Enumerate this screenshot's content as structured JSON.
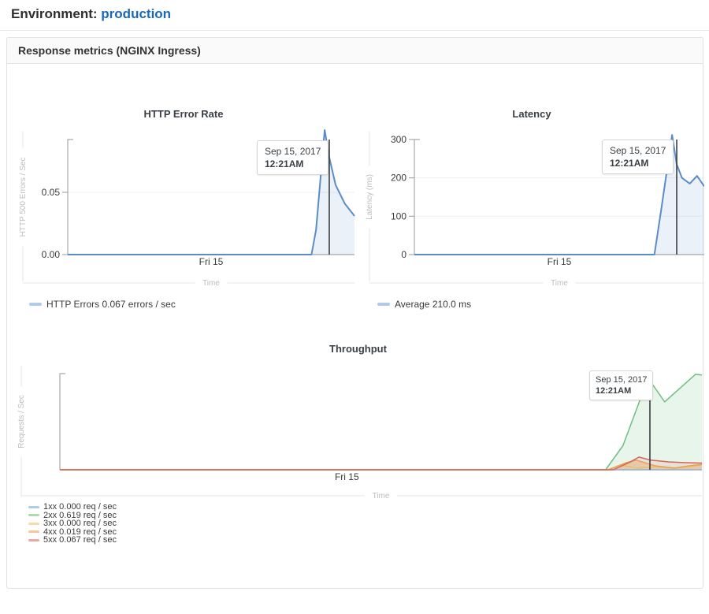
{
  "page": {
    "env_label": "Environment:",
    "env_value": "production"
  },
  "panel": {
    "title": "Response metrics (NGINX Ingress)"
  },
  "chart_data": [
    {
      "type": "area",
      "title": "HTTP Error Rate",
      "ylabel": "HTTP 500 Errors / Sec",
      "xlabel": "Time",
      "x_tick_label": "Fri 15",
      "ylim": [
        0,
        0.0924
      ],
      "yticks": [
        {
          "v": 0,
          "label": "0.00"
        },
        {
          "v": 0.05,
          "label": "0.05"
        }
      ],
      "grid": "horizontal",
      "legend_position": "bottom-left",
      "cursor": {
        "x": 0.912,
        "date": "Sep 15, 2017",
        "time": "12:21AM"
      },
      "series": [
        {
          "name": "HTTP Errors",
          "color": "#5c8cc7",
          "fill": "rgba(92,140,199,0.12)",
          "points": [
            [
              0,
              0
            ],
            [
              0.85,
              0
            ],
            [
              0.866,
              0.02
            ],
            [
              0.896,
              0.1
            ],
            [
              0.912,
              0.078
            ],
            [
              0.934,
              0.056
            ],
            [
              0.966,
              0.041
            ],
            [
              1,
              0.031
            ]
          ]
        }
      ],
      "legend": [
        {
          "label": "HTTP Errors 0.067 errors / sec",
          "color": "#8fb3de"
        }
      ]
    },
    {
      "type": "area",
      "title": "Latency",
      "ylabel": "Latency (ms)",
      "xlabel": "Time",
      "x_tick_label": "Fri 15",
      "ylim": [
        0,
        300
      ],
      "yticks": [
        {
          "v": 0,
          "label": "0"
        },
        {
          "v": 100,
          "label": "100"
        },
        {
          "v": 200,
          "label": "200"
        },
        {
          "v": 300,
          "label": "300"
        }
      ],
      "grid": "horizontal",
      "legend_position": "bottom-left",
      "cursor": {
        "x": 0.905,
        "date": "Sep 15, 2017",
        "time": "12:21AM"
      },
      "series": [
        {
          "name": "Average",
          "color": "#5c8cc7",
          "fill": "rgba(92,140,199,0.12)",
          "points": [
            [
              0,
              0
            ],
            [
              0.828,
              0
            ],
            [
              0.852,
              120
            ],
            [
              0.889,
              312
            ],
            [
              0.905,
              235
            ],
            [
              0.923,
              200
            ],
            [
              0.95,
              185
            ],
            [
              0.975,
              205
            ],
            [
              1,
              178
            ]
          ]
        }
      ],
      "legend": [
        {
          "label": "Average 210.0 ms",
          "color": "#8fb3de"
        }
      ]
    },
    {
      "type": "area",
      "title": "Throughput",
      "ylabel": "Requests / Sec",
      "xlabel": "Time",
      "x_tick_label": "Fri 15",
      "ylim": [
        0,
        0.68
      ],
      "yticks": [],
      "grid": "none",
      "legend_position": "bottom-left",
      "cursor": {
        "x": 0.919,
        "date": "Sep 15, 2017",
        "time": "12:21AM"
      },
      "series": [
        {
          "name": "1xx",
          "color": "#8fb3de",
          "fill": null,
          "points": [
            [
              0,
              0
            ],
            [
              1,
              0
            ]
          ]
        },
        {
          "name": "2xx",
          "color": "#6fbe80",
          "fill": "rgba(111,190,128,0.16)",
          "points": [
            [
              0,
              0
            ],
            [
              0.85,
              0
            ],
            [
              0.877,
              0.17
            ],
            [
              0.9,
              0.45
            ],
            [
              0.916,
              0.65
            ],
            [
              0.942,
              0.48
            ],
            [
              0.99,
              0.675
            ],
            [
              1,
              0.67
            ]
          ]
        },
        {
          "name": "3xx",
          "color": "#edc065",
          "fill": null,
          "points": [
            [
              0,
              0
            ],
            [
              0.853,
              0
            ],
            [
              0.873,
              0.033
            ],
            [
              0.9,
              0.012
            ],
            [
              0.932,
              0.02
            ],
            [
              0.957,
              0.008
            ],
            [
              0.985,
              0.024
            ],
            [
              1,
              0.034
            ]
          ]
        },
        {
          "name": "4xx",
          "color": "#ed9e56",
          "fill": "rgba(237,158,86,0.33)",
          "points": [
            [
              0,
              0
            ],
            [
              0.855,
              0
            ],
            [
              0.882,
              0.05
            ],
            [
              0.898,
              0.068
            ],
            [
              0.927,
              0.028
            ],
            [
              0.957,
              0.012
            ],
            [
              0.98,
              0.028
            ],
            [
              1,
              0.038
            ]
          ]
        },
        {
          "name": "5xx",
          "color": "#d66358",
          "fill": "rgba(214,99,88,0.12)",
          "points": [
            [
              0,
              0
            ],
            [
              0.862,
              0
            ],
            [
              0.887,
              0.052
            ],
            [
              0.902,
              0.09
            ],
            [
              0.92,
              0.068
            ],
            [
              0.95,
              0.055
            ],
            [
              0.975,
              0.05
            ],
            [
              1,
              0.047
            ]
          ]
        }
      ],
      "legend": [
        {
          "label": "1xx 0.000 req / sec",
          "color": "#8fb3de"
        },
        {
          "label": "2xx 0.619 req / sec",
          "color": "#8cc897"
        },
        {
          "label": "3xx 0.000 req / sec",
          "color": "#f2cc80"
        },
        {
          "label": "4xx 0.019 req / sec",
          "color": "#f2b071"
        },
        {
          "label": "5xx 0.067 req / sec",
          "color": "#e2837b"
        }
      ]
    }
  ]
}
